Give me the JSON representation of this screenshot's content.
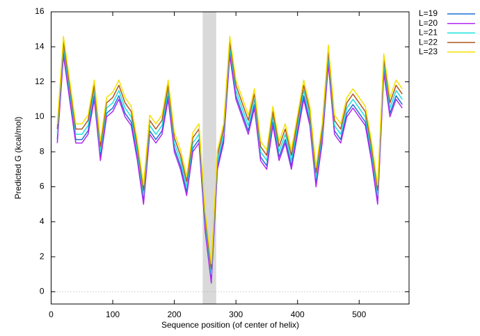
{
  "chart_data": {
    "type": "line",
    "x_label": "Sequence position (of center of helix)",
    "y_label": "Predicted  G (kcal/mol)",
    "xlim": [
      0,
      581
    ],
    "ylim": [
      -0.7,
      16
    ],
    "xticks": [
      0,
      100,
      200,
      300,
      400,
      500
    ],
    "yticks": [
      0,
      2,
      4,
      6,
      8,
      10,
      12,
      14,
      16
    ],
    "highlight": [
      246,
      268
    ],
    "zero_line": true,
    "legend": "outside-right",
    "x": [
      10,
      20,
      30,
      40,
      50,
      60,
      70,
      80,
      90,
      100,
      110,
      120,
      130,
      140,
      150,
      160,
      170,
      180,
      190,
      200,
      210,
      220,
      230,
      240,
      250,
      260,
      270,
      280,
      290,
      300,
      310,
      320,
      330,
      340,
      350,
      360,
      370,
      380,
      390,
      400,
      410,
      420,
      430,
      440,
      450,
      460,
      470,
      480,
      490,
      500,
      510,
      520,
      530,
      540,
      550,
      560,
      570
    ],
    "series": [
      {
        "name": "L=19",
        "color": "#1a6fd4",
        "values": [
          8.7,
          13.7,
          11.2,
          8.7,
          8.7,
          9.2,
          11.2,
          7.7,
          10.2,
          10.5,
          11.2,
          10.2,
          9.7,
          7.7,
          5.2,
          9.2,
          8.7,
          9.2,
          11.2,
          8.2,
          7.2,
          5.7,
          8.2,
          8.7,
          3.7,
          0.7,
          7.2,
          8.7,
          13.7,
          11.2,
          10.2,
          9.2,
          10.7,
          7.7,
          7.2,
          9.7,
          7.7,
          8.7,
          7.2,
          9.2,
          11.2,
          9.7,
          6.2,
          8.7,
          13.2,
          9.2,
          8.7,
          10.2,
          10.7,
          10.2,
          9.7,
          7.7,
          5.2,
          12.7,
          10.2,
          11.2,
          10.7
        ]
      },
      {
        "name": "L=20",
        "color": "#b026f0",
        "values": [
          8.5,
          13.5,
          11.0,
          8.5,
          8.5,
          9.0,
          11.0,
          7.5,
          10.0,
          10.3,
          11.0,
          10.0,
          9.5,
          7.5,
          5.0,
          9.0,
          8.5,
          9.0,
          11.0,
          8.0,
          7.0,
          5.5,
          8.0,
          8.5,
          3.5,
          0.5,
          7.0,
          8.5,
          13.5,
          11.0,
          10.0,
          9.0,
          10.5,
          7.5,
          7.0,
          9.5,
          7.5,
          8.5,
          7.0,
          9.0,
          11.0,
          9.5,
          6.0,
          8.5,
          13.0,
          9.0,
          8.5,
          10.0,
          10.5,
          10.0,
          9.5,
          7.5,
          5.0,
          12.5,
          10.0,
          11.0,
          10.5
        ]
      },
      {
        "name": "L=21",
        "color": "#19e0e0",
        "values": [
          9.0,
          14.0,
          11.5,
          9.0,
          9.0,
          9.5,
          11.5,
          8.0,
          10.5,
          10.8,
          11.5,
          10.5,
          10.0,
          8.0,
          5.5,
          9.5,
          9.0,
          9.5,
          11.5,
          8.5,
          7.5,
          6.0,
          8.5,
          9.0,
          4.0,
          1.0,
          7.5,
          9.0,
          14.0,
          11.5,
          10.5,
          9.5,
          11.0,
          8.0,
          7.5,
          10.0,
          8.0,
          9.0,
          7.5,
          9.5,
          11.5,
          10.0,
          6.5,
          9.0,
          13.5,
          9.5,
          9.0,
          10.5,
          11.0,
          10.5,
          10.0,
          8.0,
          5.5,
          13.0,
          10.5,
          11.5,
          11.0
        ]
      },
      {
        "name": "L=22",
        "color": "#b0541e",
        "values": [
          9.3,
          14.3,
          11.8,
          9.3,
          9.3,
          9.8,
          11.8,
          8.3,
          10.8,
          11.1,
          11.8,
          10.8,
          10.3,
          8.3,
          5.8,
          9.8,
          9.3,
          9.8,
          11.8,
          8.8,
          7.8,
          6.3,
          8.8,
          9.3,
          4.3,
          1.3,
          7.8,
          9.3,
          14.3,
          11.8,
          10.8,
          9.8,
          11.3,
          8.3,
          7.8,
          10.3,
          8.3,
          9.3,
          7.8,
          9.8,
          11.8,
          10.3,
          6.8,
          9.3,
          13.8,
          9.8,
          9.3,
          10.8,
          11.3,
          10.8,
          10.3,
          8.3,
          5.8,
          13.3,
          10.8,
          11.8,
          11.3
        ]
      },
      {
        "name": "L=23",
        "color": "#f2e200",
        "values": [
          9.6,
          14.6,
          12.1,
          9.6,
          9.6,
          10.1,
          12.1,
          8.6,
          11.1,
          11.4,
          12.1,
          11.1,
          10.6,
          8.6,
          6.1,
          10.1,
          9.6,
          10.1,
          12.1,
          9.1,
          8.1,
          6.6,
          9.1,
          9.6,
          4.6,
          1.6,
          8.1,
          9.6,
          14.6,
          12.1,
          11.1,
          10.1,
          11.6,
          8.6,
          8.1,
          10.6,
          8.6,
          9.6,
          8.1,
          10.1,
          12.1,
          10.6,
          7.1,
          9.6,
          14.1,
          10.1,
          9.6,
          11.1,
          11.6,
          11.1,
          10.6,
          8.6,
          6.1,
          13.6,
          11.1,
          12.1,
          11.6
        ]
      }
    ]
  }
}
